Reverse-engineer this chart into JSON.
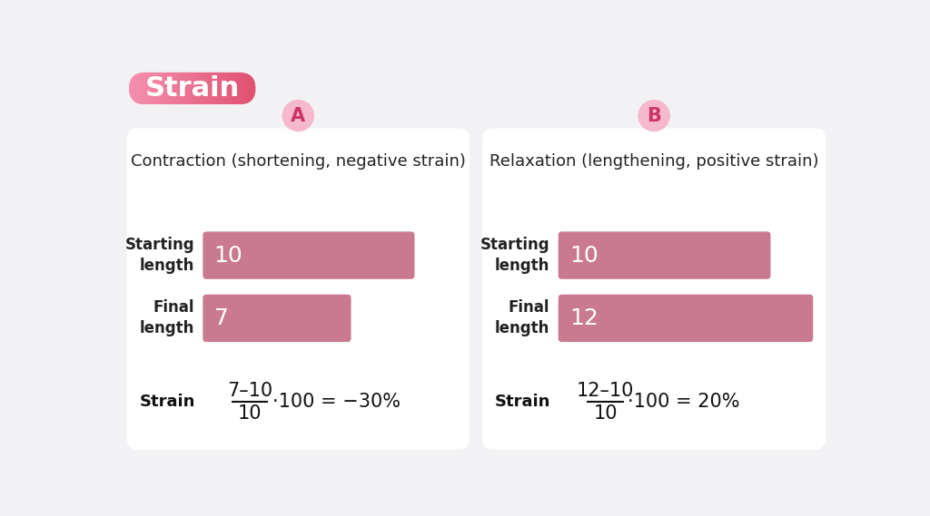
{
  "bg_color": "#f2f2f5",
  "title_text": "Strain",
  "title_text_color": "#ffffff",
  "panel_bg": "#ffffff",
  "bar_color": "#c97a90",
  "bar_text_color": "#ffffff",
  "label_color": "#222222",
  "formula_color": "#111111",
  "circle_color": "#f5b8cc",
  "circle_text_color": "#cc3366",
  "panels": [
    {
      "label": "A",
      "title": "Contraction (shortening, negative strain)",
      "starting_value": 10,
      "final_value": 7,
      "max_value": 12,
      "formula_num": "7–10",
      "formula_den": "10",
      "formula_result": "·100 = −30%"
    },
    {
      "label": "B",
      "title": "Relaxation (lengthening, positive strain)",
      "starting_value": 10,
      "final_value": 12,
      "max_value": 12,
      "formula_num": "12–10",
      "formula_den": "10",
      "formula_result": "·100 = 20%"
    }
  ]
}
